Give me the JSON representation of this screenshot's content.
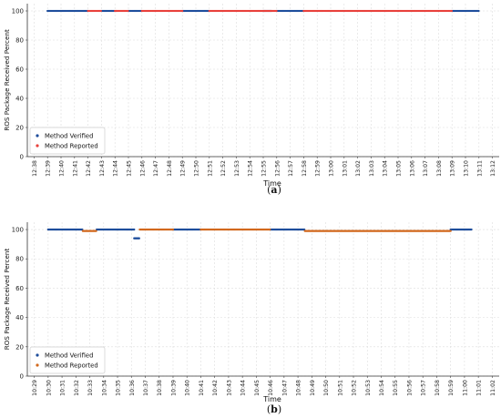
{
  "chart_data": [
    {
      "panel": "(a)",
      "caption_letter": "a",
      "type": "scatter",
      "xlabel": "Time",
      "ylabel": "ROS Package Received Percent",
      "ylim": [
        0,
        100
      ],
      "yticks": [
        0,
        20,
        40,
        60,
        80,
        100
      ],
      "grid": true,
      "legend_placement": "bottom-left",
      "categories": [
        "12:38",
        "12:39",
        "12:40",
        "12:41",
        "12:42",
        "12:43",
        "12:44",
        "12:45",
        "12:46",
        "12:47",
        "12:48",
        "12:49",
        "12:50",
        "12:51",
        "12:52",
        "12:53",
        "12:54",
        "12:55",
        "12:56",
        "12:57",
        "12:58",
        "12:59",
        "13:00",
        "13:01",
        "13:02",
        "13:03",
        "13:04",
        "13:05",
        "13:06",
        "13:07",
        "13:08",
        "13:09",
        "13:10",
        "13:11",
        "13:12"
      ],
      "series": [
        {
          "name": "Method Verified",
          "color": "#1f4e9c",
          "segments": [
            {
              "from": "12:39",
              "to": "12:42",
              "value": 100
            },
            {
              "from": "12:43",
              "to": "12:44",
              "value": 100
            },
            {
              "from": "12:45",
              "to": "12:46",
              "value": 100
            },
            {
              "from": "12:49",
              "to": "12:51",
              "value": 100
            },
            {
              "from": "12:55",
              "to": "12:55.6",
              "value": 100
            },
            {
              "from": "12:56",
              "to": "12:58",
              "value": 100
            },
            {
              "from": "13:09",
              "to": "13:11",
              "value": 100
            }
          ]
        },
        {
          "name": "Method Reported",
          "color": "#e8413c",
          "segments": [
            {
              "from": "12:42",
              "to": "12:43",
              "value": 100
            },
            {
              "from": "12:44",
              "to": "12:45",
              "value": 100
            },
            {
              "from": "12:46",
              "to": "12:49",
              "value": 100
            },
            {
              "from": "12:51",
              "to": "12:56",
              "value": 100
            },
            {
              "from": "12:58",
              "to": "13:09",
              "value": 100
            }
          ]
        }
      ]
    },
    {
      "panel": "(b)",
      "caption_letter": "b",
      "type": "scatter",
      "xlabel": "Time",
      "ylabel": "ROS Package Received Percent",
      "ylim": [
        0,
        100
      ],
      "yticks": [
        0,
        20,
        40,
        60,
        80,
        100
      ],
      "grid": true,
      "legend_placement": "bottom-left",
      "categories": [
        "10:29",
        "10:30",
        "10:31",
        "10:32",
        "10:33",
        "10:34",
        "10:35",
        "10:36",
        "10:37",
        "10:38",
        "10:39",
        "10:40",
        "10:41",
        "10:42",
        "10:43",
        "10:44",
        "10:45",
        "10:46",
        "10:47",
        "10:48",
        "10:49",
        "10:50",
        "10:51",
        "10:52",
        "10:53",
        "10:54",
        "10:55",
        "10:56",
        "10:57",
        "10:58",
        "10:59",
        "11:00",
        "11:01",
        "11:02"
      ],
      "series": [
        {
          "name": "Method Verified",
          "color": "#1f4e9c",
          "segments": [
            {
              "from": "10:30",
              "to": "10:32.5",
              "value": 100
            },
            {
              "from": "10:33.5",
              "to": "10:36.2",
              "value": 100
            },
            {
              "from": "10:36.2",
              "to": "10:36.6",
              "value": 94
            },
            {
              "from": "10:39",
              "to": "10:41",
              "value": 100
            },
            {
              "from": "10:46",
              "to": "10:48.5",
              "value": 100
            },
            {
              "from": "10:59",
              "to": "11:00.5",
              "value": 100
            }
          ]
        },
        {
          "name": "Method Reported",
          "color": "#d2691e",
          "segments": [
            {
              "from": "10:32.5",
              "to": "10:33.5",
              "value": 99
            },
            {
              "from": "10:36.6",
              "to": "10:39",
              "value": 100
            },
            {
              "from": "10:41",
              "to": "10:46",
              "value": 100
            },
            {
              "from": "10:48.5",
              "to": "10:59",
              "value": 99
            }
          ]
        }
      ]
    }
  ]
}
